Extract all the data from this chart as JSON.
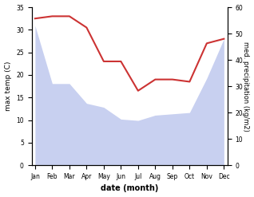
{
  "months": [
    "Jan",
    "Feb",
    "Mar",
    "Apr",
    "May",
    "Jun",
    "Jul",
    "Aug",
    "Sep",
    "Oct",
    "Nov",
    "Dec"
  ],
  "x": [
    0,
    1,
    2,
    3,
    4,
    5,
    6,
    7,
    8,
    9,
    10,
    11
  ],
  "temperature": [
    32.5,
    33.0,
    33.0,
    30.5,
    23.0,
    23.0,
    16.5,
    19.0,
    19.0,
    18.5,
    27.0,
    28.0
  ],
  "precipitation": [
    53.0,
    31.0,
    31.0,
    23.5,
    22.0,
    17.5,
    17.0,
    19.0,
    19.5,
    20.0,
    33.0,
    48.0
  ],
  "temp_color": "#cc3333",
  "precip_fill_color": "#c8d0f0",
  "xlabel": "date (month)",
  "ylabel_left": "max temp (C)",
  "ylabel_right": "med. precipitation (kg/m2)",
  "ylim_left": [
    0,
    35
  ],
  "ylim_right": [
    0,
    60
  ],
  "yticks_left": [
    0,
    5,
    10,
    15,
    20,
    25,
    30,
    35
  ],
  "yticks_right": [
    0,
    10,
    20,
    30,
    40,
    50,
    60
  ],
  "background_color": "#ffffff",
  "figure_width": 3.18,
  "figure_height": 2.47,
  "dpi": 100
}
